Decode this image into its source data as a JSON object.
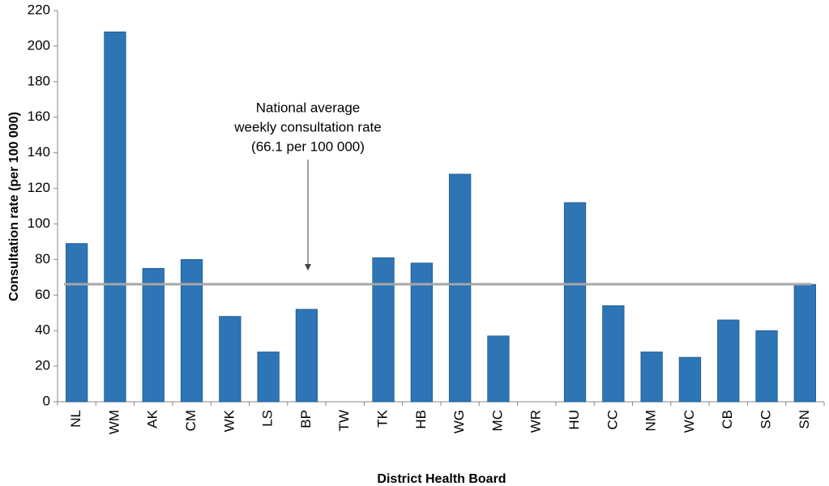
{
  "chart_data": {
    "type": "bar",
    "x_label": "District Health Board",
    "y_label": "Consultation rate (per 100 000)",
    "categories": [
      "NL",
      "WM",
      "AK",
      "CM",
      "WK",
      "LS",
      "BP",
      "TW",
      "TK",
      "HB",
      "WG",
      "MC",
      "WR",
      "HU",
      "CC",
      "NM",
      "WC",
      "CB",
      "SC",
      "SN"
    ],
    "values": [
      89,
      208,
      75,
      80,
      48,
      28,
      52,
      0,
      81,
      78,
      128,
      37,
      0,
      112,
      54,
      28,
      25,
      46,
      40,
      66
    ],
    "color": "#2e75b6",
    "ylim": [
      0,
      220
    ],
    "yticks": [
      0,
      20,
      40,
      60,
      80,
      100,
      120,
      140,
      160,
      180,
      200,
      220
    ],
    "reference_line": {
      "value": 66.1,
      "color": "#a6a6a6",
      "label": [
        "National average",
        "weekly consultation rate",
        "(66.1 per 100 000)"
      ]
    }
  }
}
